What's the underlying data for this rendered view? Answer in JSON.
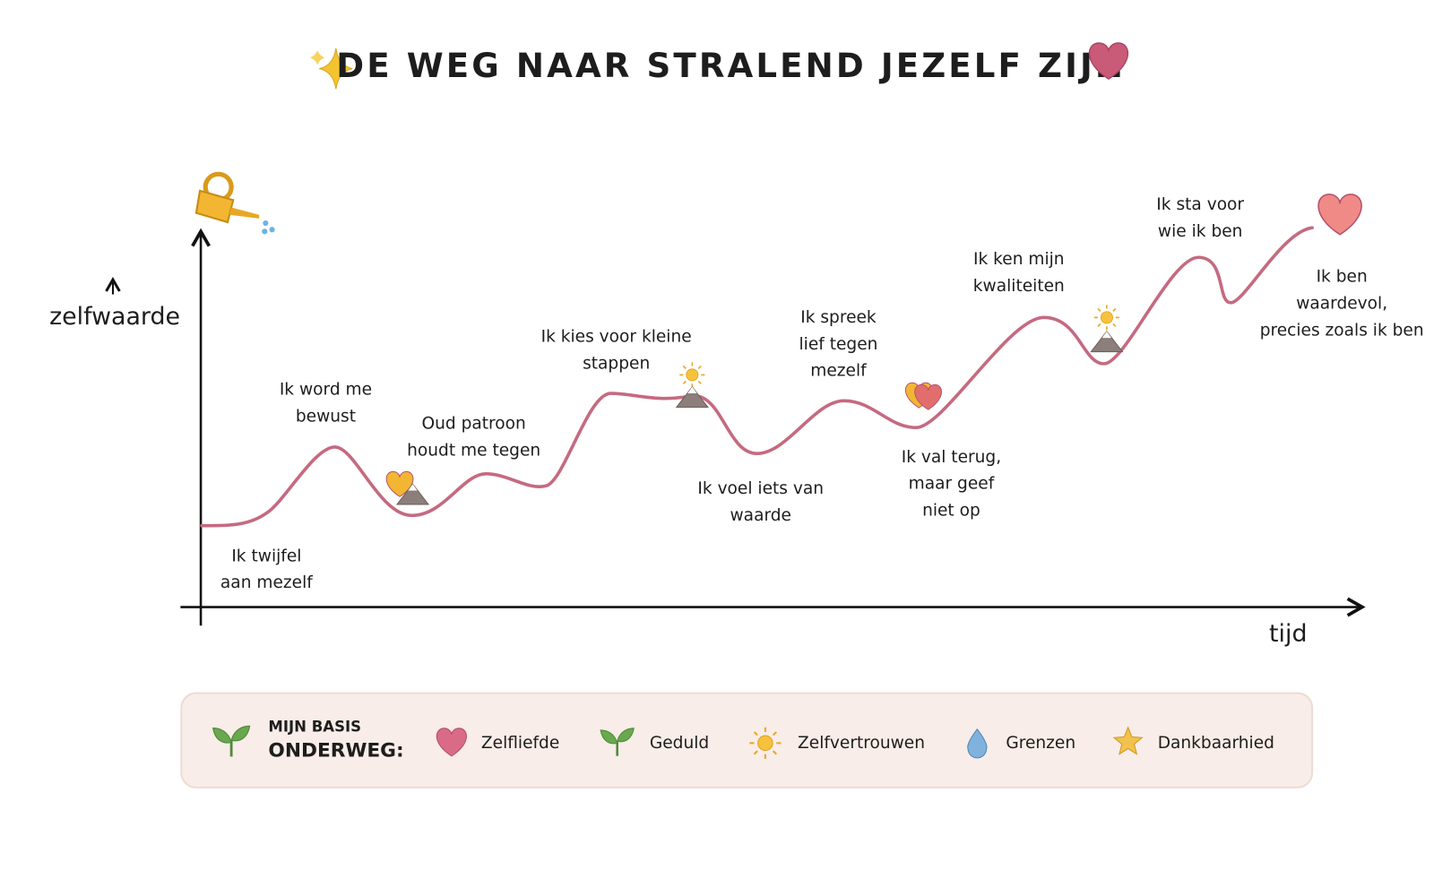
{
  "title": "DE WEG NAAR STRALEND JEZELF ZIJN",
  "axes": {
    "y_label": "zelfwaarde",
    "x_label": "tijd"
  },
  "milestones": [
    {
      "lines": [
        "Ik twijfel",
        "aan mezelf"
      ]
    },
    {
      "lines": [
        "Ik word me",
        "bewust"
      ]
    },
    {
      "lines": [
        "Oud patroon",
        "houdt me tegen"
      ]
    },
    {
      "lines": [
        "Ik kies voor kleine",
        "stappen"
      ]
    },
    {
      "lines": [
        "Ik voel iets van",
        "waarde"
      ]
    },
    {
      "lines": [
        "Ik spreek",
        "lief tegen",
        "mezelf"
      ]
    },
    {
      "lines": [
        "Ik val terug,",
        "maar geef",
        "niet op"
      ]
    },
    {
      "lines": [
        "Ik ken mijn",
        "kwaliteiten"
      ]
    },
    {
      "lines": [
        "Ik sta voor",
        "wie ik ben"
      ]
    },
    {
      "lines": [
        "Ik ben",
        "waardevol,",
        "precies zoals ik ben"
      ]
    }
  ],
  "legend": {
    "title": [
      "MIJN BASIS",
      "ONDERWEG:"
    ],
    "items": [
      "Zelfliefde",
      "Geduld",
      "Zelfvertrouwen",
      "Grenzen",
      "Dankbaarhied"
    ]
  }
}
